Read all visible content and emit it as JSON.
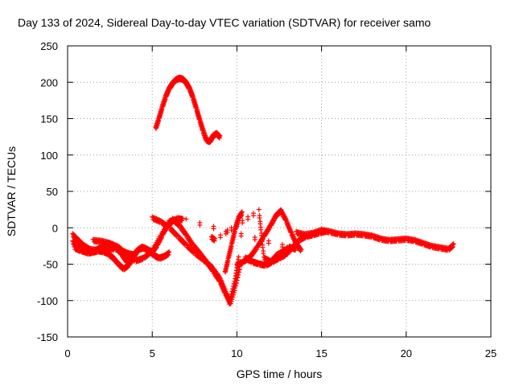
{
  "chart_data": {
    "type": "scatter",
    "title": "Day 133 of 2024, Sidereal Day-to-day VTEC variation (SDTVAR) for receiver samo",
    "xlabel": "GPS time / hours",
    "ylabel": "SDTVAR / TECUs",
    "xlim": [
      0,
      25
    ],
    "ylim": [
      -150,
      250
    ],
    "xticks": [
      0,
      5,
      10,
      15,
      20,
      25
    ],
    "yticks": [
      -150,
      -100,
      -50,
      0,
      50,
      100,
      150,
      200,
      250
    ],
    "grid": true,
    "marker": "+",
    "color": "#ff0000",
    "series": [
      {
        "name": "arc-high",
        "x": [
          5.2,
          5.4,
          5.6,
          5.8,
          6.0,
          6.2,
          6.4,
          6.6,
          6.8,
          7.0,
          7.2,
          7.4,
          7.6,
          7.8,
          8.0,
          8.2,
          8.4,
          8.6,
          8.8,
          9.0
        ],
        "y": [
          138,
          152,
          168,
          182,
          193,
          200,
          205,
          207,
          206,
          201,
          193,
          181,
          166,
          150,
          135,
          122,
          120,
          128,
          131,
          126
        ]
      },
      {
        "name": "arc-a",
        "x": [
          0.3,
          0.6,
          0.9,
          1.2,
          1.5,
          1.8,
          2.1,
          2.4,
          2.7,
          3.0,
          3.3,
          3.6,
          3.9,
          4.2,
          4.5,
          4.8,
          5.1,
          5.4,
          5.7,
          6.0
        ],
        "y": [
          -18,
          -24,
          -30,
          -33,
          -32,
          -30,
          -31,
          -34,
          -40,
          -48,
          -55,
          -50,
          -38,
          -28,
          -26,
          -30,
          -36,
          -40,
          -38,
          -33
        ]
      },
      {
        "name": "arc-b",
        "x": [
          0.4,
          0.8,
          1.2,
          1.6,
          2.0,
          2.4,
          2.8,
          3.2,
          3.5,
          3.8,
          4.1,
          4.4,
          4.7,
          5.0,
          5.3,
          5.6,
          5.9,
          6.2
        ],
        "y": [
          -26,
          -30,
          -32,
          -30,
          -25,
          -20,
          -24,
          -35,
          -45,
          -40,
          -30,
          -25,
          -28,
          -32,
          -22,
          -8,
          5,
          10
        ]
      },
      {
        "name": "arc-c",
        "x": [
          0.3,
          0.6,
          0.9,
          1.3,
          1.8,
          2.3,
          2.8,
          3.2,
          3.6,
          4.0
        ],
        "y": [
          -8,
          -15,
          -22,
          -28,
          -30,
          -28,
          -27,
          -30,
          -34,
          -36
        ]
      },
      {
        "name": "arc-d",
        "x": [
          1.5,
          2.0,
          2.5,
          3.0,
          3.5,
          4.0,
          4.5,
          5.0,
          5.5,
          6.0,
          6.5,
          6.8
        ],
        "y": [
          -16,
          -17,
          -20,
          -25,
          -35,
          -44,
          -40,
          -30,
          -10,
          10,
          14,
          13
        ]
      },
      {
        "name": "arc-e",
        "x": [
          5.0,
          5.5,
          6.0,
          6.5,
          7.0,
          7.5,
          8.0,
          8.5,
          9.0,
          9.3,
          9.6,
          9.9,
          10.2
        ],
        "y": [
          15,
          10,
          2,
          -10,
          -22,
          -33,
          -42,
          -52,
          -68,
          -85,
          -104,
          -80,
          -50
        ]
      },
      {
        "name": "arc-f",
        "x": [
          6.2,
          6.6,
          7.0,
          7.4,
          7.8,
          8.2,
          8.6,
          9.0,
          9.3,
          9.6,
          9.9,
          10.1
        ],
        "y": [
          13,
          5,
          -8,
          -22,
          -33,
          -45,
          -58,
          -72,
          -88,
          -98,
          -70,
          -40
        ]
      },
      {
        "name": "arc-g",
        "x": [
          9.3,
          9.5,
          9.7,
          9.9,
          10.1,
          10.3
        ],
        "y": [
          -60,
          -40,
          -20,
          0,
          15,
          22
        ]
      },
      {
        "name": "arc-h",
        "x": [
          10.0,
          10.4,
          10.8,
          11.2,
          11.6,
          12.0,
          12.3,
          12.6,
          12.9,
          13.2,
          13.5,
          13.8
        ],
        "y": [
          -50,
          -45,
          -38,
          -25,
          -10,
          5,
          18,
          25,
          12,
          -5,
          -20,
          -30
        ]
      },
      {
        "name": "arc-i",
        "x": [
          10.5,
          10.9,
          11.3,
          11.7,
          12.1,
          12.5,
          12.9,
          13.3,
          13.7,
          14.1,
          14.5,
          14.9,
          15.3
        ],
        "y": [
          -40,
          -45,
          -48,
          -50,
          -45,
          -40,
          -35,
          -25,
          -15,
          -10,
          -8,
          -5,
          -3
        ]
      },
      {
        "name": "arc-j",
        "x": [
          13.5,
          14.0,
          14.5,
          15.0,
          15.5,
          16.0,
          16.5,
          17.0,
          17.5,
          18.0,
          18.5,
          19.0,
          19.5,
          20.0,
          20.5,
          21.0,
          21.5,
          22.0,
          22.5,
          22.8
        ],
        "y": [
          -5,
          -8,
          -6,
          -2,
          -4,
          -7,
          -8,
          -7,
          -8,
          -10,
          -14,
          -16,
          -15,
          -14,
          -16,
          -20,
          -24,
          -26,
          -28,
          -22
        ]
      },
      {
        "name": "scatter-misc",
        "x": [
          8.5,
          8.7,
          11.3,
          11.6,
          12.0,
          12.4,
          13.1,
          13.5,
          7.0
        ],
        "y": [
          -12,
          -15,
          25,
          -40,
          -45,
          -35,
          -25,
          -28,
          12
        ]
      }
    ]
  }
}
